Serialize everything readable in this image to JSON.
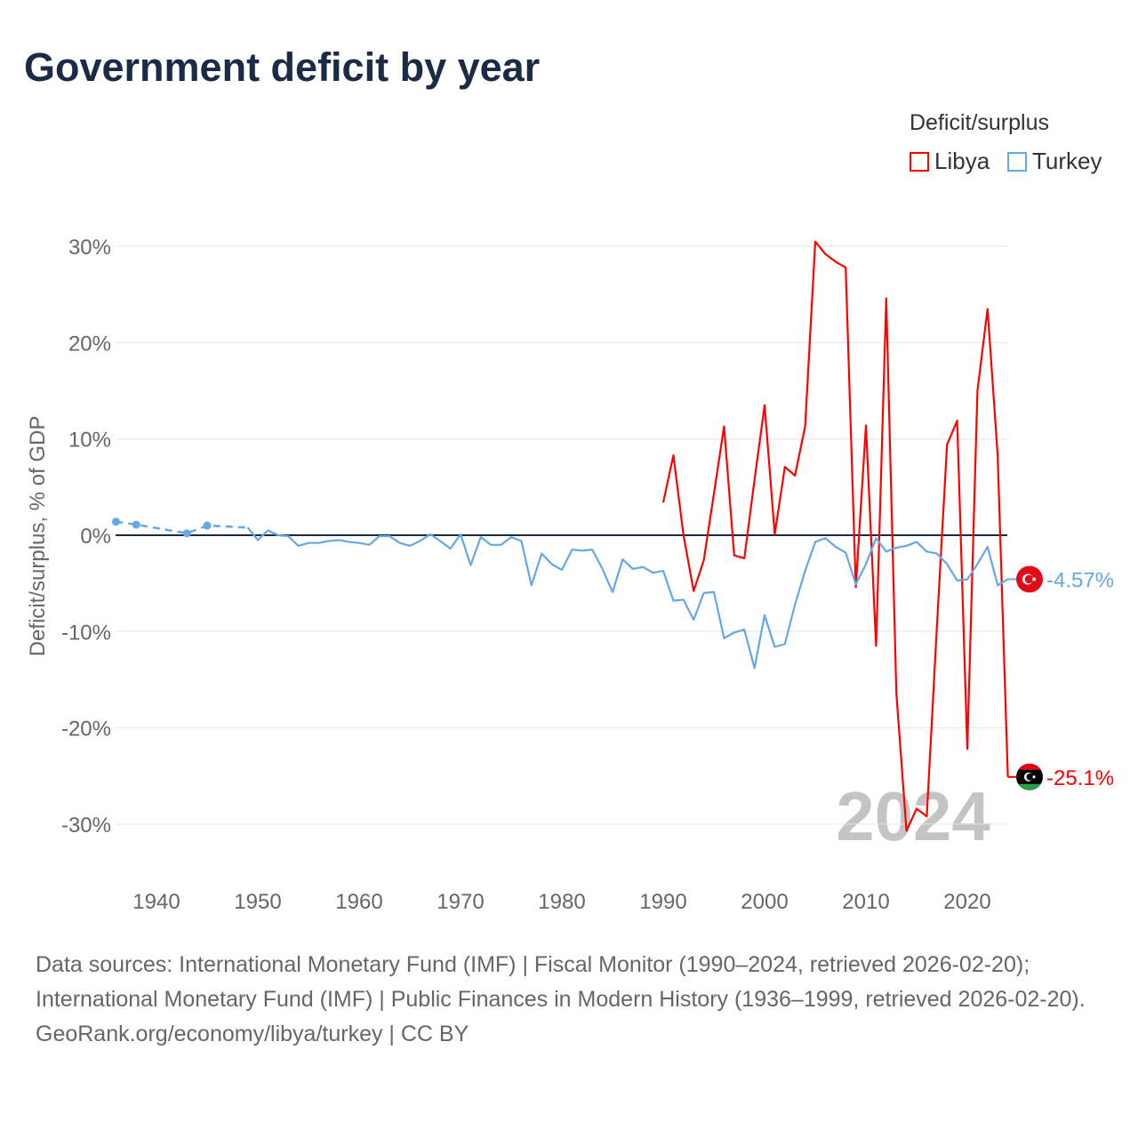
{
  "title": "Government deficit by year",
  "legend": {
    "title": "Deficit/surplus",
    "items": [
      {
        "name": "Libya",
        "color": "#ff0000"
      },
      {
        "name": "Turkey",
        "color": "#64a8e8"
      }
    ]
  },
  "chart_data": {
    "type": "line",
    "title": "Government deficit by year",
    "xlabel": "",
    "ylabel": "Deficit/surplus, % of GDP",
    "xlim": [
      1936,
      2024
    ],
    "ylim": [
      -35,
      32
    ],
    "x_ticks": [
      1940,
      1950,
      1960,
      1970,
      1980,
      1990,
      2000,
      2010,
      2020
    ],
    "y_ticks": [
      30,
      20,
      10,
      0,
      -10,
      -20,
      -30
    ],
    "y_tick_labels": [
      "30%",
      "20%",
      "10%",
      "0%",
      "-10%",
      "-20%",
      "-30%"
    ],
    "grid": true,
    "legend_position": "top-right",
    "year_watermark": "2024",
    "series": [
      {
        "name": "Libya",
        "color": "#ff0000",
        "x": [
          1990,
          1991,
          1992,
          1993,
          1994,
          1995,
          1996,
          1997,
          1998,
          1999,
          2000,
          2001,
          2002,
          2003,
          2004,
          2005,
          2006,
          2007,
          2008,
          2009,
          2010,
          2011,
          2012,
          2013,
          2014,
          2015,
          2016,
          2017,
          2018,
          2019,
          2020,
          2021,
          2022,
          2023,
          2024
        ],
        "y": [
          3.4,
          8.3,
          0,
          -5.8,
          -2.6,
          4.3,
          11.3,
          -2.1,
          -2.4,
          5.7,
          13.5,
          0.1,
          7.1,
          6.2,
          11.3,
          30.5,
          29.2,
          28.4,
          27.8,
          -5.4,
          11.4,
          -11.5,
          24.6,
          -16.4,
          -30.7,
          -28.4,
          -29.2,
          -9.5,
          9.4,
          11.9,
          -22.2,
          15.0,
          23.5,
          8.2,
          -25.1
        ],
        "end_label": "-25.1%"
      },
      {
        "name": "Turkey",
        "color": "#64a8e8",
        "dashed_x": [
          1936,
          1938,
          1943,
          1945,
          1949
        ],
        "dashed_y": [
          1.4,
          1.1,
          0.2,
          1.0,
          0.8
        ],
        "x": [
          1949,
          1950,
          1951,
          1952,
          1953,
          1954,
          1955,
          1956,
          1957,
          1958,
          1959,
          1960,
          1961,
          1962,
          1963,
          1964,
          1965,
          1966,
          1967,
          1968,
          1969,
          1970,
          1971,
          1972,
          1973,
          1974,
          1975,
          1976,
          1977,
          1978,
          1979,
          1980,
          1981,
          1982,
          1983,
          1984,
          1985,
          1986,
          1987,
          1988,
          1989,
          1990,
          1991,
          1992,
          1993,
          1994,
          1995,
          1996,
          1997,
          1998,
          1999,
          2000,
          2001,
          2002,
          2003,
          2004,
          2005,
          2006,
          2007,
          2008,
          2009,
          2010,
          2011,
          2012,
          2013,
          2014,
          2015,
          2016,
          2017,
          2018,
          2019,
          2020,
          2021,
          2022,
          2023,
          2024
        ],
        "y": [
          0.8,
          -0.5,
          0.5,
          0,
          -0.1,
          -1.1,
          -0.8,
          -0.8,
          -0.6,
          -0.5,
          -0.7,
          -0.8,
          -1.0,
          -0.1,
          -0.1,
          -0.8,
          -1.1,
          -0.6,
          0.1,
          -0.6,
          -1.4,
          0.1,
          -3.1,
          -0.2,
          -1.0,
          -1.0,
          -0.2,
          -0.6,
          -5.2,
          -1.9,
          -3.0,
          -3.6,
          -1.5,
          -1.6,
          -1.5,
          -3.5,
          -5.9,
          -2.5,
          -3.5,
          -3.3,
          -3.9,
          -3.7,
          -6.8,
          -6.7,
          -8.8,
          -6.0,
          -5.9,
          -10.7,
          -10.1,
          -9.8,
          -13.8,
          -8.3,
          -11.6,
          -11.3,
          -7.2,
          -3.7,
          -0.7,
          -0.3,
          -1.2,
          -1.8,
          -5.1,
          -3.0,
          -0.3,
          -1.7,
          -1.3,
          -1.1,
          -0.7,
          -1.7,
          -1.9,
          -3.0,
          -4.7,
          -4.6,
          -3.0,
          -1.2,
          -5.2,
          -4.57
        ],
        "end_label": "-4.57%"
      }
    ]
  },
  "footer": {
    "sources": "Data sources: International Monetary Fund (IMF) | Fiscal Monitor (1990–2024, retrieved 2026-02-20); International Monetary Fund (IMF) | Public Finances in Modern History (1936–1999, retrieved 2026-02-20).",
    "credit": "GeoRank.org/economy/libya/turkey | CC BY"
  }
}
